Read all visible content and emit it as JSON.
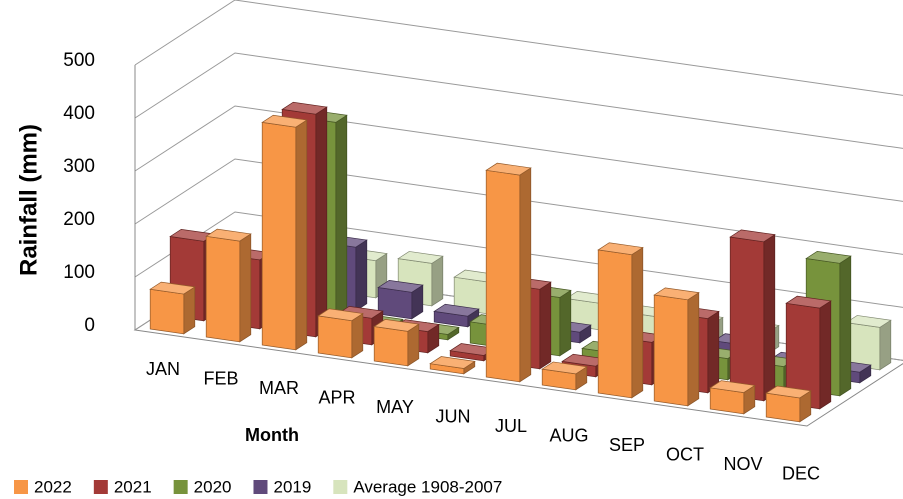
{
  "chart_data": {
    "type": "bar3d",
    "y_axis_label": "Rainfall (mm)",
    "x_axis_label": "Month",
    "categories": [
      "JAN",
      "FEB",
      "MAR",
      "APR",
      "MAY",
      "JUN",
      "JUL",
      "AUG",
      "SEP",
      "OCT",
      "NOV",
      "DEC"
    ],
    "series": [
      {
        "name": "2022",
        "color": "#f79646",
        "values": [
          75,
          190,
          420,
          70,
          65,
          10,
          390,
          30,
          270,
          200,
          40,
          45
        ]
      },
      {
        "name": "2021",
        "color": "#a33a37",
        "values": [
          150,
          130,
          420,
          50,
          40,
          10,
          150,
          20,
          80,
          140,
          300,
          190
        ]
      },
      {
        "name": "2020",
        "color": "#77933c",
        "values": [
          0,
          0,
          380,
          10,
          10,
          40,
          110,
          20,
          20,
          40,
          40,
          250
        ]
      },
      {
        "name": "2019",
        "color": "#604a7b",
        "values": [
          0,
          0,
          120,
          50,
          20,
          10,
          20,
          10,
          50,
          40,
          20,
          20
        ]
      },
      {
        "name": "Average 1908-2007",
        "color": "#d7e4bd",
        "values": [
          0,
          0,
          70,
          80,
          60,
          50,
          50,
          40,
          40,
          40,
          40,
          80
        ]
      }
    ],
    "ylim": [
      0,
      500
    ],
    "yticks": [
      0,
      100,
      200,
      300,
      400,
      500
    ],
    "grid": true
  }
}
